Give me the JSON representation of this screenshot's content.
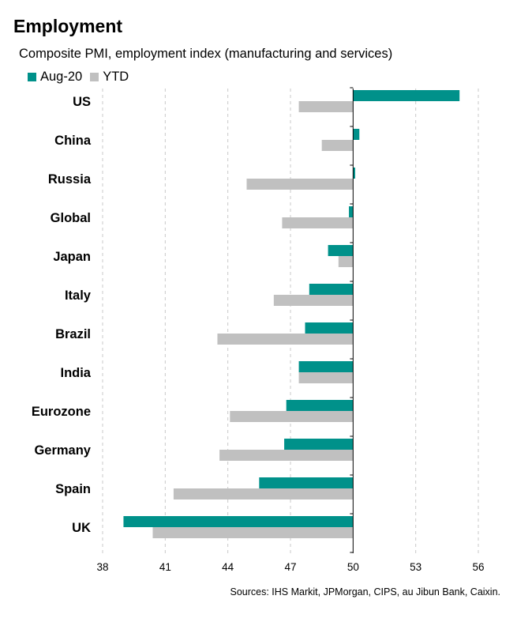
{
  "chart_data": {
    "type": "bar",
    "orientation": "horizontal",
    "title": "Employment",
    "subtitle": "Composite PMI, employment index (manufacturing and services)",
    "categories": [
      "US",
      "China",
      "Russia",
      "Global",
      "Japan",
      "Italy",
      "Brazil",
      "India",
      "Eurozone",
      "Germany",
      "Spain",
      "UK"
    ],
    "series": [
      {
        "name": "Aug-20",
        "color": "#00918a",
        "values": [
          55.1,
          50.3,
          50.1,
          49.8,
          48.8,
          47.9,
          47.7,
          47.4,
          46.8,
          46.7,
          45.5,
          39.0
        ]
      },
      {
        "name": "YTD",
        "color": "#c0c0c0",
        "values": [
          47.4,
          48.5,
          44.9,
          46.6,
          49.3,
          46.2,
          43.5,
          47.4,
          44.1,
          43.6,
          41.4,
          40.4
        ]
      }
    ],
    "baseline": 50,
    "xlim": [
      38,
      56
    ],
    "xticks": [
      38,
      41,
      44,
      47,
      50,
      53,
      56
    ],
    "grid": "vertical dashed",
    "legend_position": "top-left"
  },
  "source": "Sources: IHS Markit, JPMorgan, CIPS, au Jibun Bank, Caixin."
}
